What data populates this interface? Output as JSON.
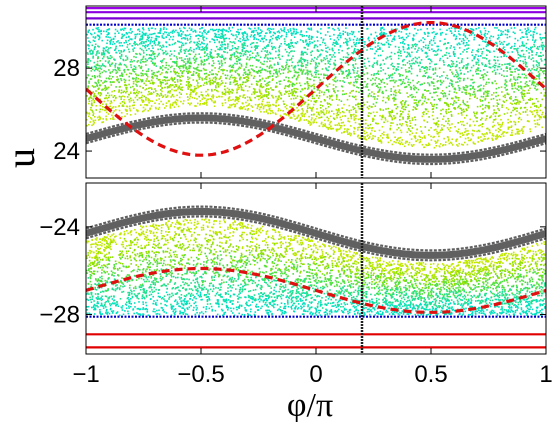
{
  "chart_data": {
    "type": "scatter",
    "xlabel": "φ/π",
    "ylabel": "u",
    "x_ticks": [
      "−1",
      "−0.5",
      "0",
      "0.5",
      "1"
    ],
    "x_tick_values": [
      -1,
      -0.5,
      0,
      0.5,
      1
    ],
    "xlim": [
      -1,
      1
    ],
    "shared_x": true,
    "marker_vertical_x": 0.2,
    "panels": [
      {
        "name": "top",
        "ylim": [
          22.7,
          31.0
        ],
        "y_ticks": [
          "24",
          "28"
        ],
        "y_tick_values": [
          24,
          28
        ],
        "chaotic_sea": {
          "lower_center": 25.2,
          "lower_amp": 1.0,
          "upper_bound": 30.0,
          "phase_of_peak": -0.5
        },
        "island_bands": {
          "center": 24.6,
          "amp": 1.0,
          "phase_of_peak": -0.5,
          "thickness": 0.45
        },
        "red_dashed": {
          "center": 27.0,
          "amp": 3.2,
          "phase_of_peak": 0.5
        },
        "flat_bands": [
          {
            "y": 30.1,
            "color": "#0000cc"
          },
          {
            "y": 30.4,
            "color": "#7b00d6"
          },
          {
            "y": 30.7,
            "color": "#8a00e0"
          },
          {
            "y": 30.9,
            "color": "#9a00e8"
          }
        ]
      },
      {
        "name": "bottom",
        "ylim": [
          -29.8,
          -22.0
        ],
        "y_ticks": [
          "−24",
          "−28"
        ],
        "y_tick_values": [
          -24,
          -28
        ],
        "chaotic_sea": {
          "upper_center": -24.6,
          "upper_amp": 1.0,
          "lower_bound": -28.0,
          "phase_of_peak": -0.5
        },
        "island_bands": {
          "center": -24.3,
          "amp": 1.0,
          "phase_of_peak": -0.5,
          "thickness": 0.45
        },
        "red_dashed": {
          "center": -26.9,
          "amp": 1.0,
          "phase_of_peak": -0.5
        },
        "flat_bands": [
          {
            "y": -28.1,
            "color": "#0000cc"
          },
          {
            "y": -28.9,
            "color": "#e00000"
          },
          {
            "y": -29.5,
            "color": "#e00000"
          }
        ]
      }
    ],
    "colors": {
      "sea": [
        "#00e0c0",
        "#20e090",
        "#50e040",
        "#90e000",
        "#c0e800"
      ],
      "islands": "#606060",
      "red_dashed": "#e01010",
      "vertical_marker": "#202020"
    },
    "grid": false,
    "legend": "none"
  }
}
